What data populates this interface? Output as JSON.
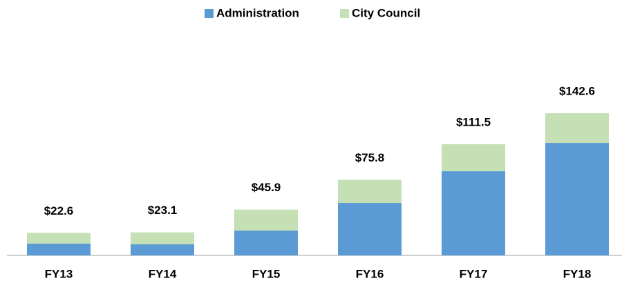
{
  "chart_data": {
    "type": "bar",
    "stacked": true,
    "categories": [
      "FY13",
      "FY14",
      "FY15",
      "FY16",
      "FY17",
      "FY18"
    ],
    "series": [
      {
        "name": "Administration",
        "color": "#5b9bd5",
        "values": [
          11.8,
          11.1,
          24.9,
          52.6,
          84.4,
          112.8
        ]
      },
      {
        "name": "City Council",
        "color": "#c5e0b4",
        "values": [
          10.8,
          12.0,
          21.0,
          23.2,
          27.1,
          29.8
        ]
      }
    ],
    "totals": [
      22.6,
      23.1,
      45.9,
      75.8,
      111.5,
      142.6
    ],
    "total_labels": [
      "$22.6",
      "$23.1",
      "$45.9",
      "$75.8",
      "$111.5",
      "$142.6"
    ],
    "legend": "top"
  }
}
